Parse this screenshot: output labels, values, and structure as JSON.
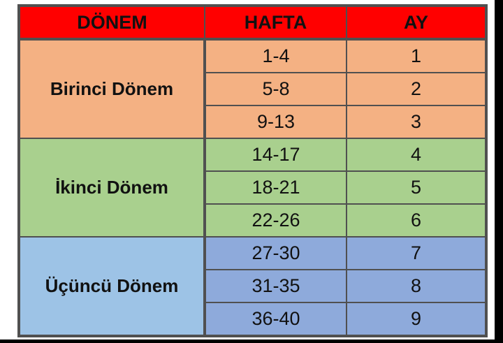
{
  "headers": [
    "DÖNEM",
    "HAFTA",
    "AY"
  ],
  "colors": {
    "header": "#ff0000",
    "birinci": "#f4b183",
    "ikinci": "#a9d08e",
    "ucuncu_label": "#9dc3e6",
    "ucuncu_cells": "#8eaadb"
  },
  "periods": [
    {
      "name": "Birinci Dönem",
      "rows": [
        {
          "hafta": "1-4",
          "ay": "1"
        },
        {
          "hafta": "5-8",
          "ay": "2"
        },
        {
          "hafta": "9-13",
          "ay": "3"
        }
      ]
    },
    {
      "name": "İkinci Dönem",
      "rows": [
        {
          "hafta": "14-17",
          "ay": "4"
        },
        {
          "hafta": "18-21",
          "ay": "5"
        },
        {
          "hafta": "22-26",
          "ay": "6"
        }
      ]
    },
    {
      "name": "Üçüncü Dönem",
      "rows": [
        {
          "hafta": "27-30",
          "ay": "7"
        },
        {
          "hafta": "31-35",
          "ay": "8"
        },
        {
          "hafta": "36-40",
          "ay": "9"
        }
      ]
    }
  ]
}
